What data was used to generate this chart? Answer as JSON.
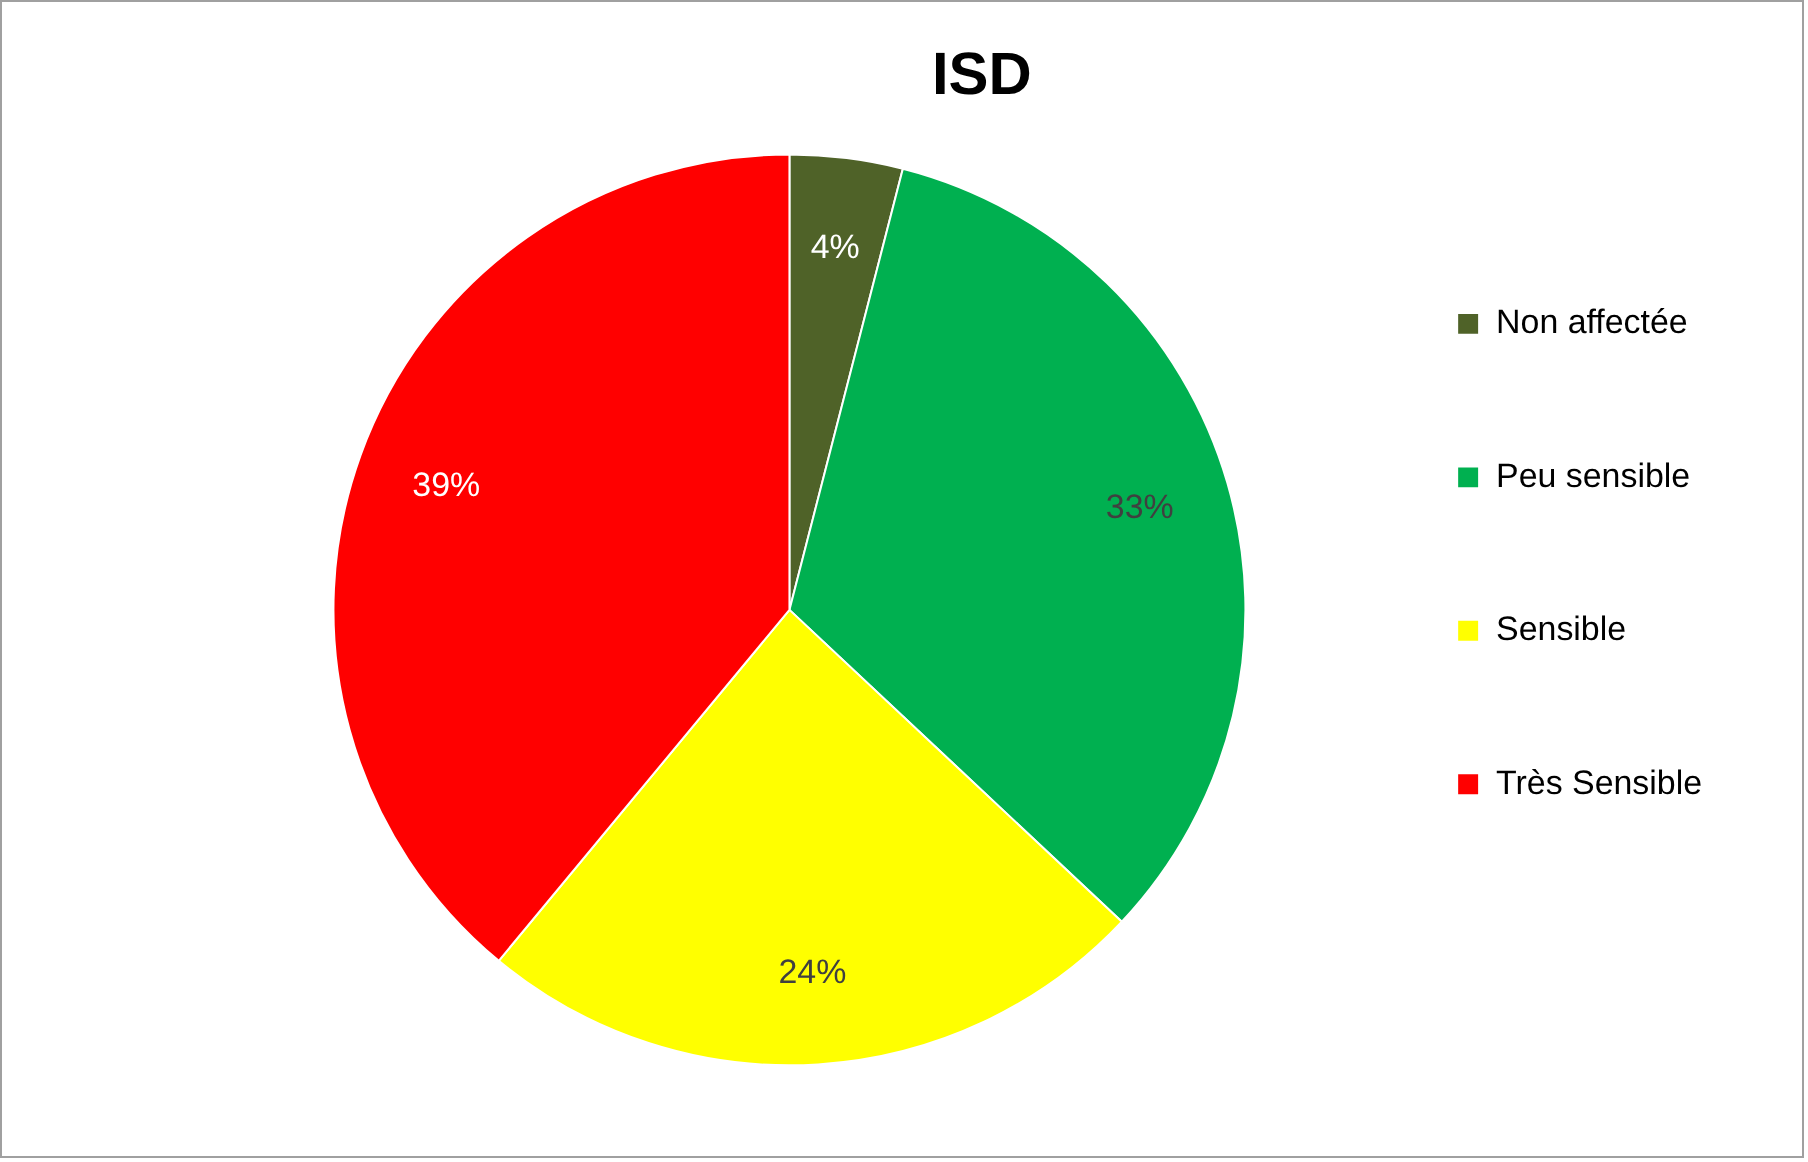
{
  "chart_data": {
    "type": "pie",
    "title": "ISD",
    "categories": [
      "Non affectée",
      "Peu sensible",
      "Sensible",
      "Très Sensible"
    ],
    "values": [
      4,
      33,
      24,
      39
    ],
    "colors": [
      "#4f6228",
      "#00b050",
      "#ffff00",
      "#ff0000"
    ],
    "value_labels": [
      "4%",
      "33%",
      "24%",
      "39%"
    ],
    "legend": "right"
  }
}
